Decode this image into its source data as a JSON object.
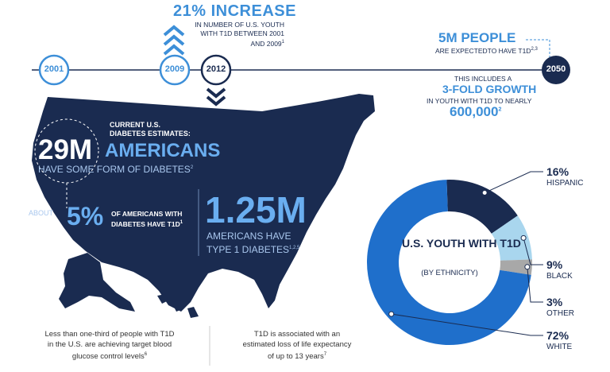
{
  "timeline": {
    "years": [
      "2001",
      "2009",
      "2012",
      "2050"
    ],
    "increase": {
      "headline": "21% INCREASE",
      "line1": "IN NUMBER OF U.S. YOUTH",
      "line2": "WITH T1D BETWEEN 2001",
      "line3": "AND 2009",
      "ref": "1"
    },
    "projection": {
      "headline": "5M PEOPLE",
      "sub": "ARE EXPECTEDTO HAVE T1D",
      "ref": "2,3"
    },
    "growth": {
      "line1": "THIS INCLUDES A",
      "headline": "3-FOLD GROWTH",
      "line2": "IN YOUTH WITH T1D TO NEARLY",
      "number": "600,000",
      "ref": "2"
    }
  },
  "map": {
    "estimates_title_1": "CURRENT U.S.",
    "estimates_title_2": "DIABETES ESTIMATES:",
    "big_number": "29M",
    "big_word": "AMERICANS",
    "big_sub": "HAVE SOME FORM OF DIABETES",
    "big_ref": "2",
    "about": "ABOUT",
    "pct": "5%",
    "pct_line1": "OF AMERICANS WITH",
    "pct_line2": "DIABETES  HAVE T1D",
    "pct_ref": "1",
    "t1d_number": "1.25M",
    "t1d_line1": "AMERICANS HAVE",
    "t1d_line2": "TYPE 1 DIABETES",
    "t1d_ref": "1,2,5"
  },
  "footnotes": {
    "left": [
      "Less than one-third of people with T1D",
      "in the U.S. are achieving target blood",
      "glucose control levels"
    ],
    "left_ref": "6",
    "right": [
      "T1D is associated with an",
      "estimated loss of life expectancy",
      "of up to 13 years"
    ],
    "right_ref": "7"
  },
  "chart_data": {
    "type": "pie",
    "title": "U.S. YOUTH WITH T1D",
    "subtitle": "(BY ETHNICITY)",
    "categories": [
      "HISPANIC",
      "BLACK",
      "OTHER",
      "WHITE"
    ],
    "values": [
      16,
      9,
      3,
      72
    ],
    "labels": [
      "16%",
      "9%",
      "3%",
      "72%"
    ],
    "colors": [
      "#1a2b50",
      "#a9d6ee",
      "#a8a8a8",
      "#1f6fcb"
    ],
    "donut": true
  },
  "colors": {
    "navy": "#1a2b50",
    "blue": "#3d8fd8",
    "light_blue": "#a9d6ee"
  }
}
